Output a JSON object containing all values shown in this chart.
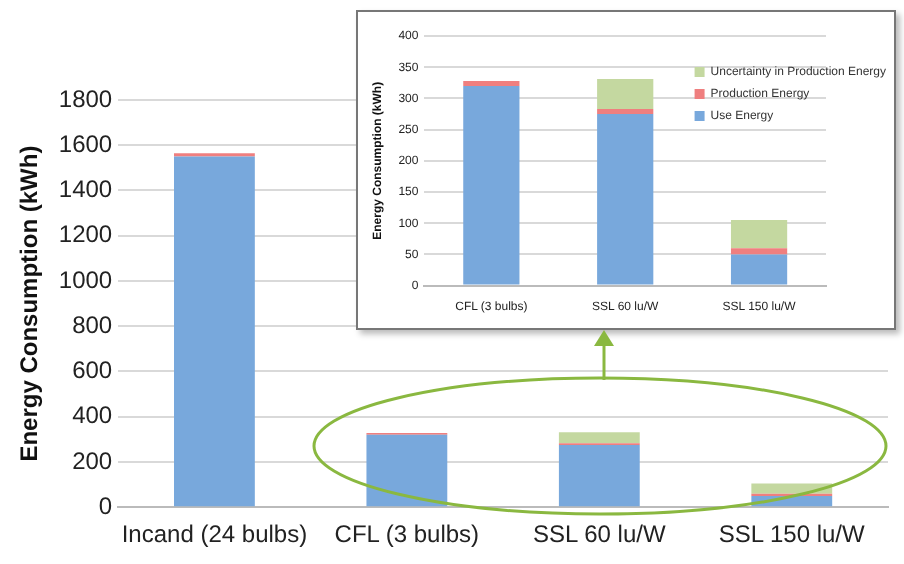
{
  "chart_data": [
    {
      "type": "bar",
      "ylabel": "Energy Consumption (kWh)",
      "categories": [
        "Incand (24 bulbs)",
        "CFL (3 bulbs)",
        "SSL 60 lu/W",
        "SSL 150 lu/W"
      ],
      "stacked": true,
      "ylim": [
        0,
        1800
      ],
      "yticks": [
        0,
        200,
        400,
        600,
        800,
        1000,
        1200,
        1400,
        1600,
        1800
      ],
      "grid": "y",
      "legend": false,
      "series": [
        {
          "color": "#78a8dc",
          "values": [
            1550,
            320,
            275,
            50
          ]
        },
        {
          "color": "#ef7f7f",
          "values": [
            15,
            8,
            8,
            10
          ]
        },
        {
          "color": "#c4d8a0",
          "values": [
            null,
            null,
            48,
            45
          ]
        }
      ]
    },
    {
      "type": "bar",
      "ylabel": "Energy Consumption (kWh)",
      "categories": [
        "CFL (3 bulbs)",
        "SSL 60 lu/W",
        "SSL 150 lu/W"
      ],
      "stacked": true,
      "ylim": [
        0,
        400
      ],
      "yticks": [
        0,
        50,
        100,
        150,
        200,
        250,
        300,
        350,
        400
      ],
      "grid": "y",
      "legend": "top right",
      "series": [
        {
          "name": "Use Energy",
          "color": "#78a8dc",
          "values": [
            320,
            275,
            50
          ]
        },
        {
          "name": "Production Energy",
          "color": "#ef7f7f",
          "values": [
            8,
            8,
            10
          ]
        },
        {
          "name": "Uncertainty in Production Energy",
          "color": "#c4d8a0",
          "values": [
            null,
            48,
            45
          ]
        }
      ]
    }
  ]
}
